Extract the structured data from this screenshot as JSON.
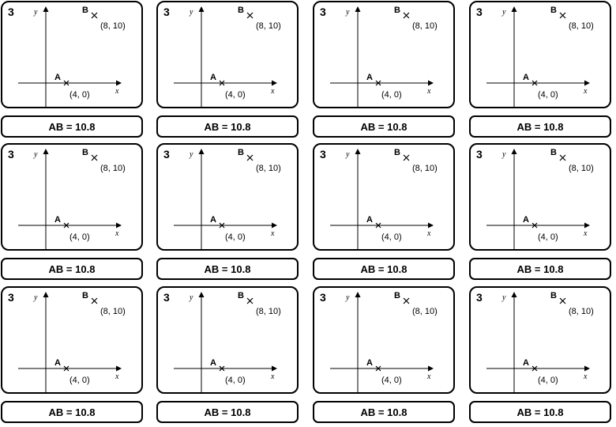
{
  "question_number": "3",
  "axis_x_label": "x",
  "axis_y_label": "y",
  "point_a": {
    "name": "A",
    "coords": "(4, 0)",
    "x": 4,
    "y": 0
  },
  "point_b": {
    "name": "B",
    "coords": "(8, 10)",
    "x": 8,
    "y": 10
  },
  "answer": "AB = 10.8",
  "grid": {
    "rows": 3,
    "columns": 4
  }
}
